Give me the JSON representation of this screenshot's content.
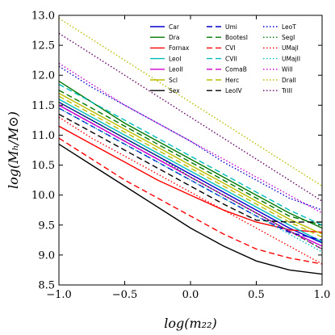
{
  "chart_data": {
    "type": "line",
    "xlabel": "log(m₂₂)",
    "ylabel": "log(Mₕ/M⊙)",
    "xlim": [
      -1.0,
      1.0
    ],
    "ylim": [
      8.5,
      13.0
    ],
    "xticks": [
      "−1.0",
      "−0.5",
      "0.0",
      "0.5",
      "1.0"
    ],
    "xtick_values": [
      -1.0,
      -0.5,
      0.0,
      0.5,
      1.0
    ],
    "yticks": [
      "8.5",
      "9.0",
      "9.5",
      "10.0",
      "10.5",
      "11.0",
      "11.5",
      "12.0",
      "12.5",
      "13.0"
    ],
    "ytick_values": [
      8.5,
      9.0,
      9.5,
      10.0,
      10.5,
      11.0,
      11.5,
      12.0,
      12.5,
      13.0
    ],
    "grid": false,
    "legend_position": "top-right",
    "x": [
      -1.0,
      -0.75,
      -0.5,
      -0.25,
      0.0,
      0.25,
      0.5,
      0.75,
      1.0
    ],
    "series": [
      {
        "name": "Car",
        "color": "#0000cc",
        "dash": "solid",
        "values": [
          11.55,
          11.25,
          10.95,
          10.65,
          10.35,
          10.05,
          9.75,
          9.45,
          9.2
        ]
      },
      {
        "name": "Dra",
        "color": "#007700",
        "dash": "solid",
        "values": [
          11.9,
          11.55,
          11.2,
          10.9,
          10.6,
          10.3,
          10.0,
          9.7,
          9.45
        ]
      },
      {
        "name": "Fornax",
        "color": "#ff0000",
        "dash": "solid",
        "values": [
          11.15,
          10.85,
          10.55,
          10.25,
          10.0,
          9.75,
          9.55,
          9.42,
          9.38
        ]
      },
      {
        "name": "LeoI",
        "color": "#00bbbb",
        "dash": "solid",
        "values": [
          11.6,
          11.3,
          11.0,
          10.7,
          10.4,
          10.1,
          9.8,
          9.5,
          9.22
        ]
      },
      {
        "name": "LeoII",
        "color": "#cc00cc",
        "dash": "solid",
        "values": [
          11.5,
          11.2,
          10.9,
          10.6,
          10.3,
          10.0,
          9.7,
          9.4,
          9.15
        ]
      },
      {
        "name": "Scl",
        "color": "#bbbb00",
        "dash": "solid",
        "values": [
          11.7,
          11.4,
          11.1,
          10.8,
          10.5,
          10.2,
          9.9,
          9.6,
          9.35
        ]
      },
      {
        "name": "Sex",
        "color": "#000000",
        "dash": "solid",
        "values": [
          10.85,
          10.5,
          10.15,
          9.8,
          9.45,
          9.15,
          8.9,
          8.75,
          8.68
        ]
      },
      {
        "name": "Umi",
        "color": "#0000cc",
        "dash": "dashed",
        "values": [
          11.45,
          11.15,
          10.85,
          10.55,
          10.25,
          9.95,
          9.65,
          9.38,
          9.25
        ]
      },
      {
        "name": "BootesI",
        "color": "#007700",
        "dash": "dashed",
        "values": [
          11.75,
          11.45,
          11.15,
          10.85,
          10.55,
          10.25,
          9.95,
          9.65,
          9.5
        ]
      },
      {
        "name": "CVI",
        "color": "#ff0000",
        "dash": "dashed",
        "values": [
          10.95,
          10.6,
          10.25,
          9.95,
          9.65,
          9.35,
          9.1,
          8.95,
          8.85
        ]
      },
      {
        "name": "CVII",
        "color": "#00bbbb",
        "dash": "dashed",
        "values": [
          11.85,
          11.55,
          11.25,
          10.95,
          10.65,
          10.35,
          10.05,
          9.75,
          9.5
        ]
      },
      {
        "name": "ComaB",
        "color": "#cc00cc",
        "dash": "dashed",
        "values": [
          11.5,
          11.2,
          10.9,
          10.6,
          10.3,
          10.0,
          9.7,
          9.4,
          9.1
        ]
      },
      {
        "name": "Herc",
        "color": "#bbbb00",
        "dash": "dashed",
        "values": [
          11.65,
          11.35,
          11.05,
          10.75,
          10.45,
          10.15,
          9.85,
          9.55,
          9.3
        ]
      },
      {
        "name": "LeoIV",
        "color": "#000000",
        "dash": "dashed",
        "values": [
          11.35,
          11.05,
          10.75,
          10.45,
          10.15,
          9.85,
          9.58,
          9.55,
          9.55
        ]
      },
      {
        "name": "LeoT",
        "color": "#0000cc",
        "dash": "dotted",
        "values": [
          12.15,
          11.8,
          11.5,
          11.2,
          10.9,
          10.55,
          10.25,
          9.95,
          9.75
        ]
      },
      {
        "name": "SegI",
        "color": "#007700",
        "dash": "dotted",
        "values": [
          11.55,
          11.25,
          10.95,
          10.65,
          10.3,
          10.0,
          9.7,
          9.4,
          9.1
        ]
      },
      {
        "name": "UMajI",
        "color": "#ff0000",
        "dash": "dotted",
        "values": [
          11.3,
          10.95,
          10.65,
          10.35,
          10.05,
          9.75,
          9.45,
          9.15,
          8.85
        ]
      },
      {
        "name": "UMajII",
        "color": "#00bbbb",
        "dash": "dotted",
        "values": [
          11.45,
          11.15,
          10.85,
          10.55,
          10.25,
          9.95,
          9.65,
          9.35,
          9.05
        ]
      },
      {
        "name": "WilI",
        "color": "#cc00cc",
        "dash": "dotted",
        "values": [
          12.2,
          11.85,
          11.5,
          11.2,
          10.9,
          10.6,
          10.3,
          10.0,
          9.7
        ]
      },
      {
        "name": "DraII",
        "color": "#bbbb00",
        "dash": "dotted",
        "values": [
          12.95,
          12.6,
          12.25,
          11.9,
          11.55,
          11.2,
          10.85,
          10.5,
          10.15
        ]
      },
      {
        "name": "TriII",
        "color": "#660066",
        "dash": "dotted",
        "values": [
          12.7,
          12.35,
          12.0,
          11.65,
          11.3,
          10.95,
          10.6,
          10.25,
          9.9
        ]
      }
    ]
  }
}
